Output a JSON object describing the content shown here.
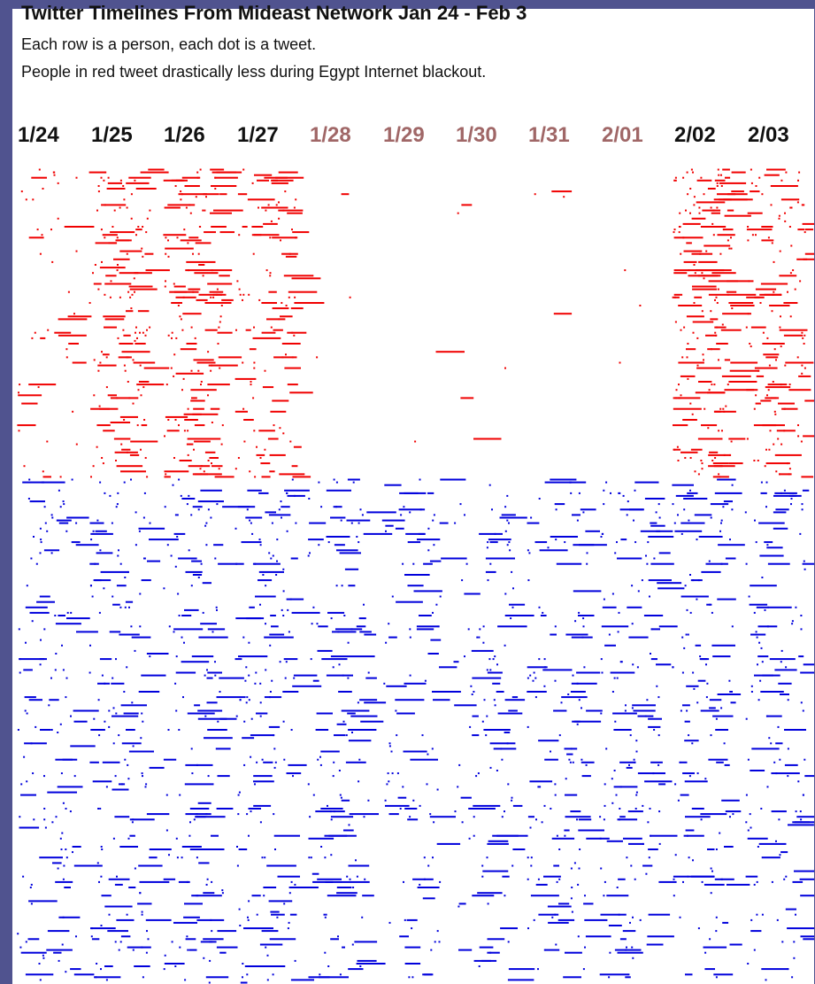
{
  "title": "Twitter Timelines From Mideast Network Jan 24 - Feb 3",
  "subtitle_lines": [
    "Each row is a person, each dot is a tweet.",
    "People in red tweet drastically less during Egypt Internet blackout."
  ],
  "colors": {
    "background": "#50538f",
    "panel": "#ffffff",
    "red_group": "#f00000",
    "blue_group": "#0000dc",
    "date_normal": "#111111",
    "date_blackout": "#a06767"
  },
  "chart_data": {
    "type": "scatter",
    "x_unit": "day",
    "x": [
      "1/24",
      "1/25",
      "1/26",
      "1/27",
      "1/28",
      "1/29",
      "1/30",
      "1/31",
      "2/01",
      "2/02",
      "2/03"
    ],
    "blackout_days": [
      "1/28",
      "1/29",
      "1/30",
      "1/31",
      "2/01"
    ],
    "series": [
      {
        "color": "red",
        "row_share": 0.38,
        "relative_activity": [
          0.35,
          0.75,
          0.85,
          0.7,
          0.03,
          0.03,
          0.03,
          0.03,
          0.03,
          0.95,
          0.8
        ]
      },
      {
        "color": "blue",
        "row_share": 0.62,
        "relative_activity": [
          0.5,
          0.6,
          0.6,
          0.55,
          0.55,
          0.5,
          0.5,
          0.55,
          0.55,
          0.55,
          0.55
        ]
      }
    ],
    "grid": false,
    "legend": "none"
  }
}
